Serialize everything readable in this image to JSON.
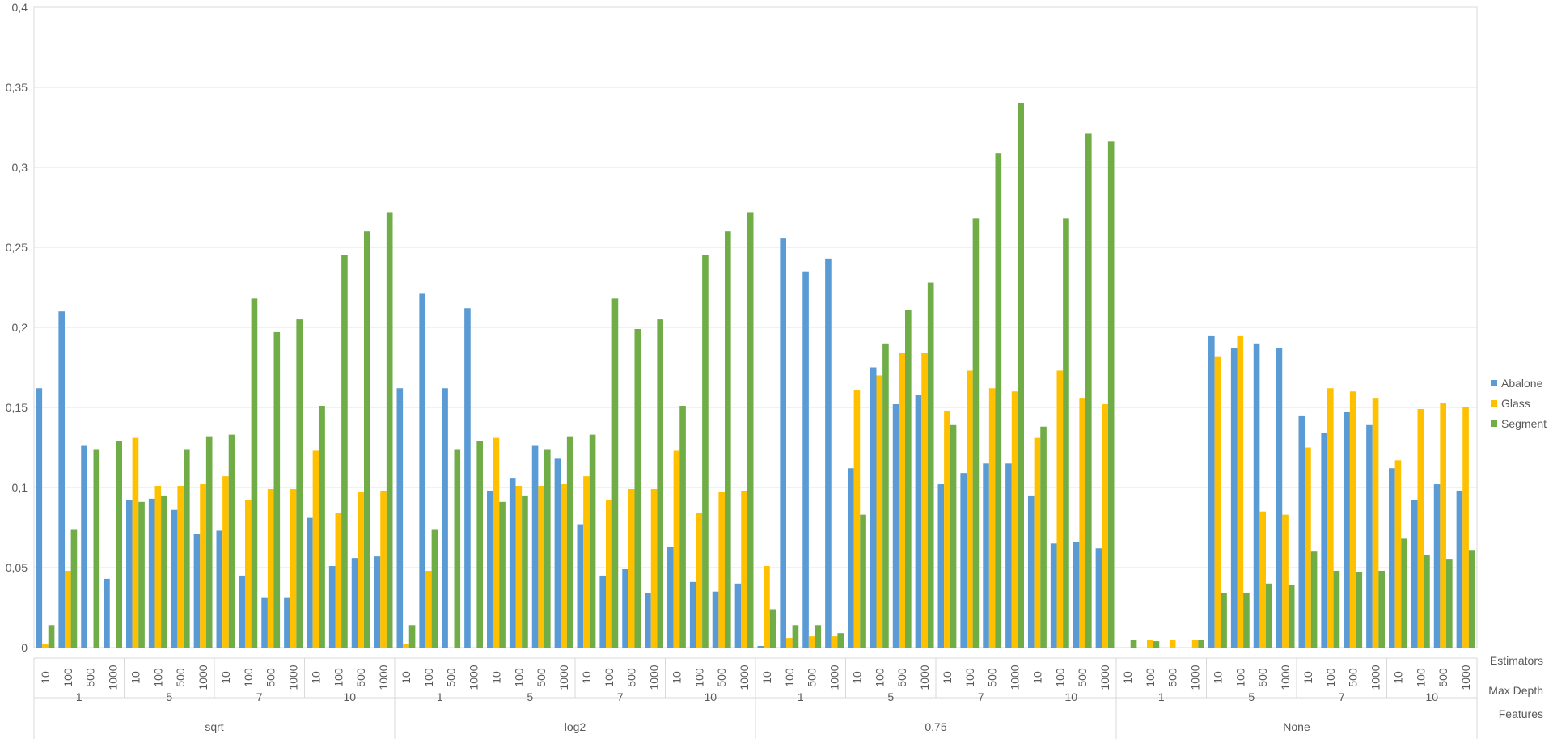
{
  "chart_data": {
    "type": "bar",
    "ylim": [
      0,
      0.4
    ],
    "y_ticks": [
      "0",
      "0,05",
      "0,1",
      "0,15",
      "0,2",
      "0,25",
      "0,3",
      "0,35",
      "0,4"
    ],
    "y_tick_values": [
      0,
      0.05,
      0.1,
      0.15,
      0.2,
      0.25,
      0.3,
      0.35,
      0.4
    ],
    "grid": true,
    "legend_position": "right",
    "category_levels": {
      "estimators_label": "Estimators",
      "max_depth_label": "Max Depth",
      "features_label": "Features"
    },
    "features": [
      {
        "label": "sqrt",
        "depths": [
          {
            "label": "1",
            "estimators": [
              "10",
              "100",
              "500",
              "1000"
            ]
          },
          {
            "label": "5",
            "estimators": [
              "10",
              "100",
              "500",
              "1000"
            ]
          },
          {
            "label": "7",
            "estimators": [
              "10",
              "100",
              "500",
              "1000"
            ]
          },
          {
            "label": "10",
            "estimators": [
              "10",
              "100",
              "500",
              "1000"
            ]
          }
        ]
      },
      {
        "label": "log2",
        "depths": [
          {
            "label": "1",
            "estimators": [
              "10",
              "100",
              "500",
              "1000"
            ]
          },
          {
            "label": "5",
            "estimators": [
              "10",
              "100",
              "500",
              "1000"
            ]
          },
          {
            "label": "7",
            "estimators": [
              "10",
              "100",
              "500",
              "1000"
            ]
          },
          {
            "label": "10",
            "estimators": [
              "10",
              "100",
              "500",
              "1000"
            ]
          }
        ]
      },
      {
        "label": "0.75",
        "depths": [
          {
            "label": "1",
            "estimators": [
              "10",
              "100",
              "500",
              "1000"
            ]
          },
          {
            "label": "5",
            "estimators": [
              "10",
              "100",
              "500",
              "1000"
            ]
          },
          {
            "label": "7",
            "estimators": [
              "10",
              "100",
              "500",
              "1000"
            ]
          },
          {
            "label": "10",
            "estimators": [
              "10",
              "100",
              "500",
              "1000"
            ]
          }
        ]
      },
      {
        "label": "None",
        "depths": [
          {
            "label": "1",
            "estimators": [
              "10",
              "100",
              "500",
              "1000"
            ]
          },
          {
            "label": "5",
            "estimators": [
              "10",
              "100",
              "500",
              "1000"
            ]
          },
          {
            "label": "7",
            "estimators": [
              "10",
              "100",
              "500",
              "1000"
            ]
          },
          {
            "label": "10",
            "estimators": [
              "10",
              "100",
              "500",
              "1000"
            ]
          }
        ]
      }
    ],
    "series": [
      {
        "name": "Abalone",
        "color": "#5B9BD5",
        "values": [
          0.162,
          0.21,
          0.126,
          0.043,
          0.092,
          0.093,
          0.086,
          0.071,
          0.073,
          0.045,
          0.031,
          0.031,
          0.081,
          0.051,
          0.056,
          0.057,
          0.162,
          0.221,
          0.162,
          0.212,
          0.098,
          0.106,
          0.126,
          0.118,
          0.077,
          0.045,
          0.049,
          0.034,
          0.063,
          0.041,
          0.035,
          0.04,
          0.001,
          0.256,
          0.235,
          0.243,
          0.112,
          0.175,
          0.152,
          0.158,
          0.102,
          0.109,
          0.115,
          0.115,
          0.095,
          0.065,
          0.066,
          0.062,
          0,
          0,
          0,
          0,
          0.195,
          0.187,
          0.19,
          0.187,
          0.145,
          0.134,
          0.147,
          0.139,
          0.112,
          0.092,
          0.102,
          0.098
        ]
      },
      {
        "name": "Glass",
        "color": "#FFC000",
        "values": [
          0.002,
          0.048,
          0,
          0,
          0.131,
          0.101,
          0.101,
          0.102,
          0.107,
          0.092,
          0.099,
          0.099,
          0.123,
          0.084,
          0.097,
          0.098,
          0.002,
          0.048,
          0,
          0,
          0.131,
          0.101,
          0.101,
          0.102,
          0.107,
          0.092,
          0.099,
          0.099,
          0.123,
          0.084,
          0.097,
          0.098,
          0.051,
          0.006,
          0.007,
          0.007,
          0.161,
          0.17,
          0.184,
          0.184,
          0.148,
          0.173,
          0.162,
          0.16,
          0.131,
          0.173,
          0.156,
          0.152,
          0,
          0.005,
          0.005,
          0.005,
          0.182,
          0.195,
          0.085,
          0.083,
          0.125,
          0.162,
          0.16,
          0.156,
          0.117,
          0.149,
          0.153,
          0.15
        ]
      },
      {
        "name": "Segment",
        "color": "#70AD47",
        "values": [
          0.014,
          0.074,
          0.124,
          0.129,
          0.091,
          0.095,
          0.124,
          0.132,
          0.133,
          0.218,
          0.197,
          0.205,
          0.151,
          0.245,
          0.26,
          0.272,
          0.014,
          0.074,
          0.124,
          0.129,
          0.091,
          0.095,
          0.124,
          0.132,
          0.133,
          0.218,
          0.199,
          0.205,
          0.151,
          0.245,
          0.26,
          0.272,
          0.024,
          0.014,
          0.014,
          0.009,
          0.083,
          0.19,
          0.211,
          0.228,
          0.139,
          0.268,
          0.309,
          0.34,
          0.138,
          0.268,
          0.321,
          0.316,
          0.005,
          0.004,
          0,
          0.005,
          0.034,
          0.034,
          0.04,
          0.039,
          0.06,
          0.048,
          0.047,
          0.048,
          0.068,
          0.058,
          0.055,
          0.061
        ]
      }
    ]
  }
}
